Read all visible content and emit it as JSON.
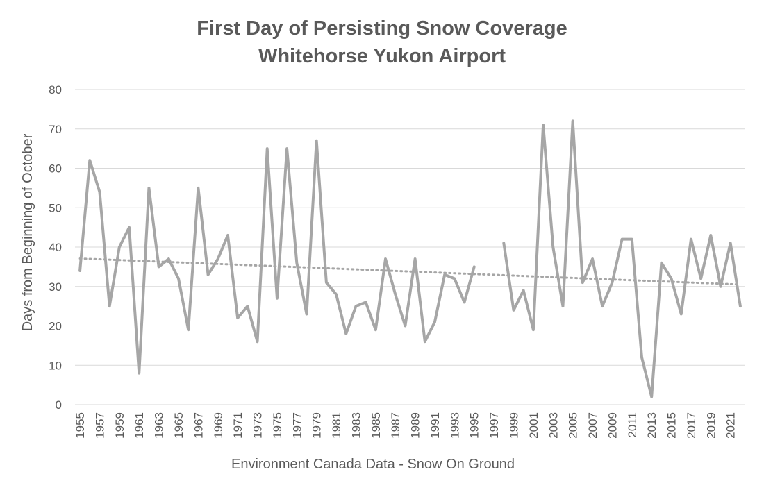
{
  "chart_data": {
    "type": "line",
    "title_line1": "First Day of Persisting Snow Coverage",
    "title_line2": "Whitehorse Yukon Airport",
    "xlabel": "Environment Canada Data - Snow On Ground",
    "ylabel": "Days from Beginning of October",
    "ylim": [
      0,
      80
    ],
    "yticks": [
      0,
      10,
      20,
      30,
      40,
      50,
      60,
      70,
      80
    ],
    "grid": true,
    "x": [
      1955,
      1956,
      1957,
      1958,
      1959,
      1960,
      1961,
      1962,
      1963,
      1964,
      1965,
      1966,
      1967,
      1968,
      1969,
      1970,
      1971,
      1972,
      1973,
      1974,
      1975,
      1976,
      1977,
      1978,
      1979,
      1980,
      1981,
      1982,
      1983,
      1984,
      1985,
      1986,
      1987,
      1988,
      1989,
      1990,
      1991,
      1992,
      1993,
      1994,
      1995,
      1996,
      1997,
      1998,
      1999,
      2000,
      2001,
      2002,
      2003,
      2004,
      2005,
      2006,
      2007,
      2008,
      2009,
      2010,
      2011,
      2012,
      2013,
      2014,
      2015,
      2016,
      2017,
      2018,
      2019,
      2020,
      2021,
      2022
    ],
    "x_tick_labels": [
      "1955",
      "1957",
      "1959",
      "1961",
      "1963",
      "1965",
      "1967",
      "1969",
      "1971",
      "1973",
      "1975",
      "1977",
      "1979",
      "1981",
      "1983",
      "1985",
      "1987",
      "1989",
      "1991",
      "1993",
      "1995",
      "1997",
      "1999",
      "2001",
      "2003",
      "2005",
      "2007",
      "2009",
      "2011",
      "2013",
      "2015",
      "2017",
      "2019",
      "2021"
    ],
    "series": [
      {
        "name": "First Day of Persisting Snow",
        "color": "#a6a6a6",
        "values": [
          34,
          62,
          54,
          25,
          40,
          45,
          8,
          55,
          35,
          37,
          32,
          19,
          55,
          33,
          37,
          43,
          22,
          25,
          16,
          65,
          27,
          65,
          36,
          23,
          67,
          31,
          28,
          18,
          25,
          26,
          19,
          37,
          28,
          20,
          37,
          16,
          21,
          33,
          32,
          26,
          35,
          null,
          null,
          41,
          24,
          29,
          19,
          71,
          40,
          25,
          72,
          31,
          37,
          25,
          31,
          42,
          42,
          12,
          2,
          36,
          32,
          23,
          42,
          32,
          43,
          30,
          41,
          25
        ]
      }
    ],
    "trendline": {
      "name": "Linear trend",
      "color": "#a6a6a6",
      "style": "dotted",
      "start_value": 37.1,
      "end_value": 30.5
    }
  }
}
